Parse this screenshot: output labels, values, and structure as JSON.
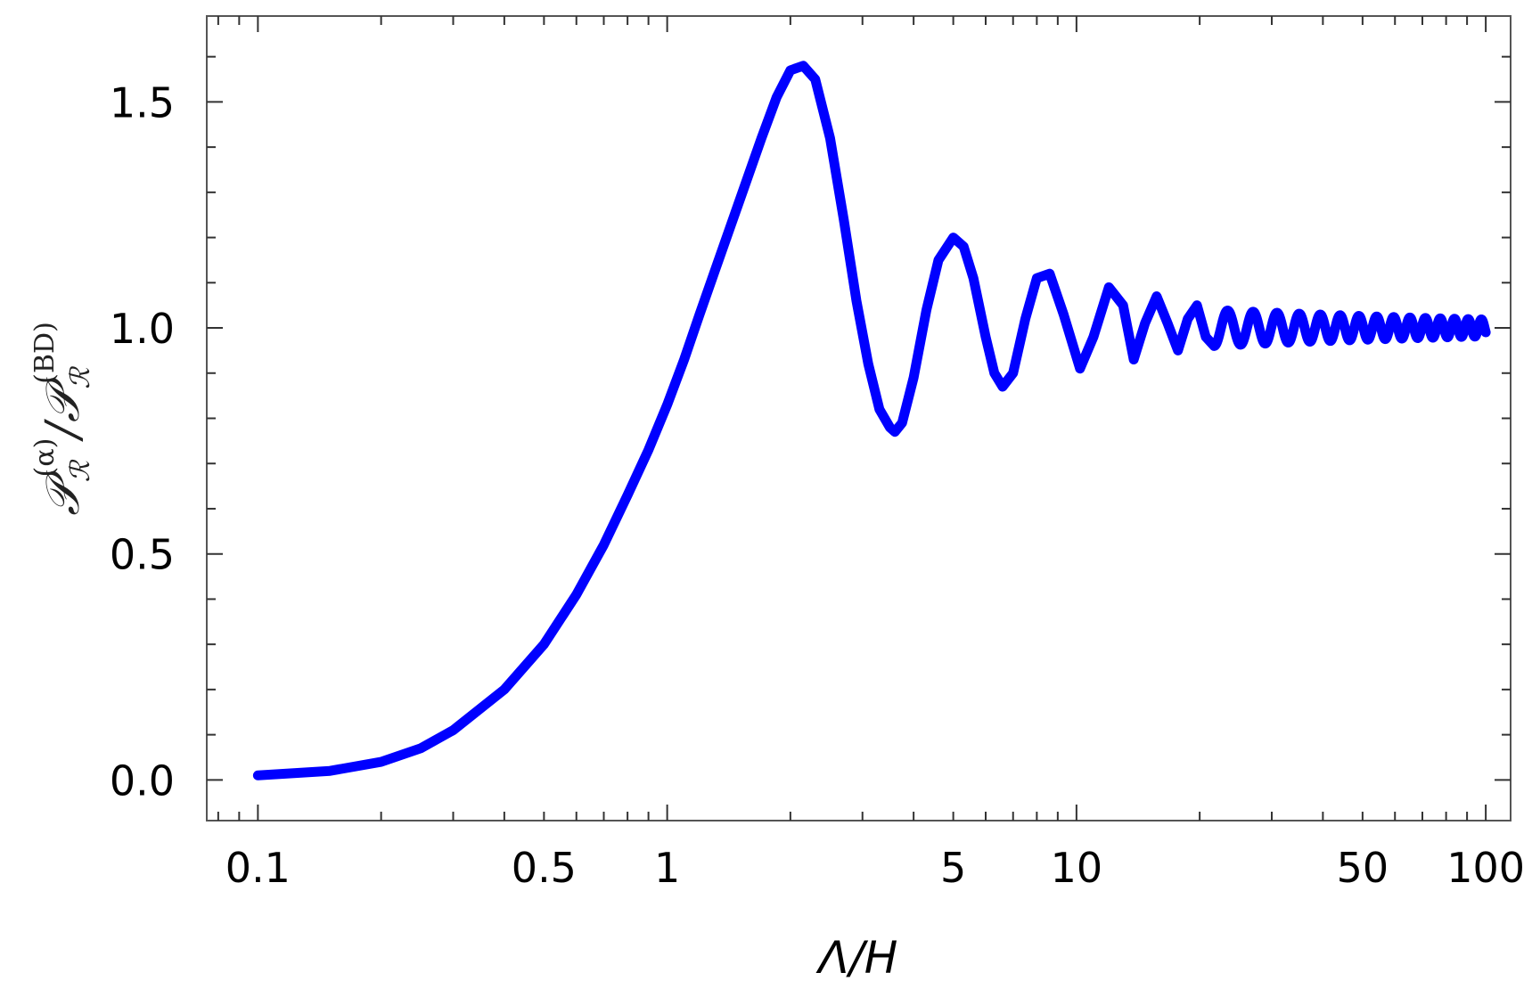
{
  "chart_data": {
    "type": "line",
    "xscale": "log",
    "xlim": [
      0.075,
      115
    ],
    "ylim": [
      -0.09,
      1.69
    ],
    "xlabel": "Λ/H",
    "ylabel": {
      "numerator_main": "𝒫",
      "numerator_sub": "ℛ",
      "numerator_sup": "(α)",
      "slash": "/",
      "denominator_main": "𝒫",
      "denominator_sub": "ℛ",
      "denominator_sup": "(BD)"
    },
    "x_tick_labels": [
      {
        "value": 0.1,
        "label": "0.1"
      },
      {
        "value": 0.5,
        "label": "0.5"
      },
      {
        "value": 1,
        "label": "1"
      },
      {
        "value": 5,
        "label": "5"
      },
      {
        "value": 10,
        "label": "10"
      },
      {
        "value": 50,
        "label": "50"
      },
      {
        "value": 100,
        "label": "100"
      }
    ],
    "y_tick_labels": [
      {
        "value": 0.0,
        "label": "0.0"
      },
      {
        "value": 0.5,
        "label": "0.5"
      },
      {
        "value": 1.0,
        "label": "1.0"
      },
      {
        "value": 1.5,
        "label": "1.5"
      }
    ],
    "grid": false,
    "series": [
      {
        "color": "#0000ff",
        "x": [
          0.1,
          0.15,
          0.2,
          0.25,
          0.3,
          0.4,
          0.5,
          0.6,
          0.7,
          0.8,
          0.9,
          1.0,
          1.1,
          1.2,
          1.3,
          1.5,
          1.7,
          1.85,
          2.0,
          2.15,
          2.3,
          2.5,
          2.7,
          2.9,
          3.1,
          3.3,
          3.5,
          3.6,
          3.75,
          4.0,
          4.3,
          4.6,
          5.0,
          5.3,
          5.6,
          6.0,
          6.3,
          6.6,
          7.0,
          7.5,
          8.0,
          8.6,
          9.3,
          10.2,
          11.0,
          12.0,
          13.0,
          13.8,
          14.7,
          15.7,
          16.7,
          17.7,
          18.7,
          19.7,
          20.7,
          21.7
        ],
        "y": [
          0.01,
          0.02,
          0.04,
          0.07,
          0.11,
          0.2,
          0.3,
          0.41,
          0.52,
          0.63,
          0.73,
          0.83,
          0.93,
          1.03,
          1.12,
          1.28,
          1.42,
          1.51,
          1.57,
          1.58,
          1.55,
          1.42,
          1.24,
          1.06,
          0.92,
          0.82,
          0.78,
          0.77,
          0.79,
          0.89,
          1.04,
          1.15,
          1.2,
          1.18,
          1.11,
          0.98,
          0.9,
          0.87,
          0.9,
          1.02,
          1.11,
          1.12,
          1.03,
          0.91,
          0.98,
          1.09,
          1.05,
          0.93,
          1.01,
          1.07,
          1.01,
          0.95,
          1.02,
          1.05,
          0.98,
          0.96
        ],
        "continuation": {
          "note_hidden": false,
          "oscillation_center": 1.0,
          "x_range": [
            22,
            100
          ]
        }
      }
    ]
  }
}
